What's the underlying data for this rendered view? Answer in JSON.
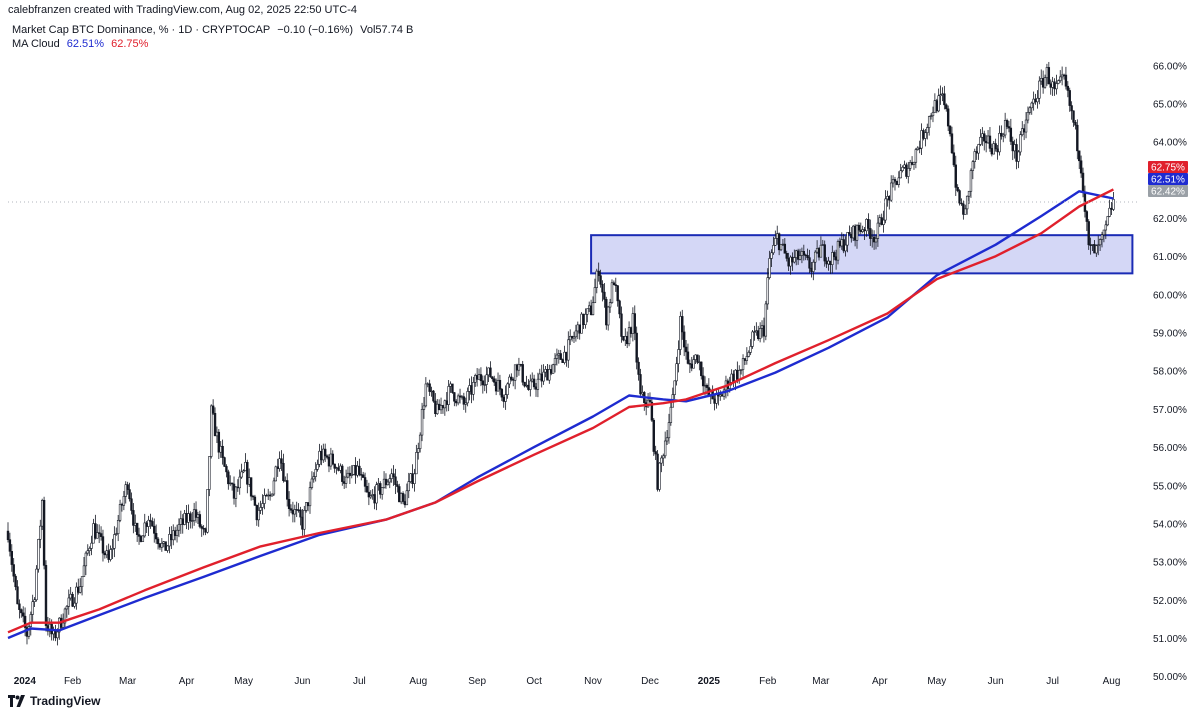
{
  "header": {
    "credit": "calebfranzen created with TradingView.com, Aug 02, 2025 22:50 UTC-4",
    "symbol": "Market Cap BTC Dominance, % · 1D · CRYPTOCAP",
    "change": "−0.10 (−0.16%)",
    "volume": "Vol57.74 B",
    "indicator_name": "MA Cloud",
    "indicator_value_blue": "62.51%",
    "indicator_value_red": "62.75%"
  },
  "footer": {
    "brand": "TradingView",
    "logo_icon": "tradingview-logo-icon"
  },
  "colors": {
    "candle": "#131722",
    "ma_fast": "#1e2bd0",
    "ma_slow": "#e0202c",
    "zone_fill": "#3949d6",
    "zone_stroke": "#1a2bb5",
    "axis_text": "#131722",
    "last_label": "#9aa0a6"
  },
  "chart_data": {
    "type": "candlestick",
    "title": "Market Cap BTC Dominance, %",
    "y_scale": "linear",
    "ylim": [
      49.9,
      66.4
    ],
    "grid": false,
    "y_ticks": [
      "66.00%",
      "65.00%",
      "64.00%",
      "63.00%",
      "62.00%",
      "61.00%",
      "60.00%",
      "59.00%",
      "58.00%",
      "57.00%",
      "56.00%",
      "55.00%",
      "54.00%",
      "53.00%",
      "52.00%",
      "51.00%",
      "50.00%"
    ],
    "y_tick_values": [
      66,
      65,
      64,
      63,
      62,
      61,
      60,
      59,
      58,
      57,
      56,
      55,
      54,
      53,
      52,
      51,
      50
    ],
    "x_ticks": [
      "2024",
      "Feb",
      "Mar",
      "Apr",
      "May",
      "Jun",
      "Jul",
      "Aug",
      "Sep",
      "Oct",
      "Nov",
      "Dec",
      "2025",
      "Feb",
      "Mar",
      "Apr",
      "May",
      "Jun",
      "Jul",
      "Aug"
    ],
    "x_tick_dates": [
      "2024-01-01",
      "2024-02-01",
      "2024-03-01",
      "2024-04-01",
      "2024-05-01",
      "2024-06-01",
      "2024-07-01",
      "2024-08-01",
      "2024-09-01",
      "2024-10-01",
      "2024-11-01",
      "2024-12-01",
      "2025-01-01",
      "2025-02-01",
      "2025-03-01",
      "2025-04-01",
      "2025-05-01",
      "2025-06-01",
      "2025-07-01",
      "2025-08-01"
    ],
    "x_range": [
      "2023-12-29",
      "2025-08-16"
    ],
    "price_path": [
      [
        "2023-12-29",
        53.8
      ],
      [
        "2024-01-03",
        51.8
      ],
      [
        "2024-01-08",
        51.1
      ],
      [
        "2024-01-12",
        52.2
      ],
      [
        "2024-01-16",
        54.6
      ],
      [
        "2024-01-18",
        51.4
      ],
      [
        "2024-01-22",
        51.0
      ],
      [
        "2024-01-28",
        51.7
      ],
      [
        "2024-02-05",
        52.4
      ],
      [
        "2024-02-12",
        53.9
      ],
      [
        "2024-02-20",
        53.0
      ],
      [
        "2024-02-26",
        54.3
      ],
      [
        "2024-03-01",
        55.1
      ],
      [
        "2024-03-06",
        53.5
      ],
      [
        "2024-03-12",
        54.2
      ],
      [
        "2024-03-20",
        53.3
      ],
      [
        "2024-03-28",
        53.9
      ],
      [
        "2024-04-05",
        54.3
      ],
      [
        "2024-04-11",
        53.6
      ],
      [
        "2024-04-14",
        56.9
      ],
      [
        "2024-04-20",
        55.6
      ],
      [
        "2024-04-26",
        54.7
      ],
      [
        "2024-05-02",
        55.4
      ],
      [
        "2024-05-08",
        54.3
      ],
      [
        "2024-05-15",
        54.7
      ],
      [
        "2024-05-20",
        55.9
      ],
      [
        "2024-05-25",
        54.5
      ],
      [
        "2024-06-01",
        54.0
      ],
      [
        "2024-06-10",
        55.8
      ],
      [
        "2024-06-18",
        55.6
      ],
      [
        "2024-06-24",
        55.1
      ],
      [
        "2024-06-30",
        55.4
      ],
      [
        "2024-07-06",
        54.6
      ],
      [
        "2024-07-12",
        54.9
      ],
      [
        "2024-07-18",
        55.3
      ],
      [
        "2024-07-24",
        54.5
      ],
      [
        "2024-07-30",
        55.4
      ],
      [
        "2024-08-05",
        57.6
      ],
      [
        "2024-08-11",
        56.9
      ],
      [
        "2024-08-18",
        57.5
      ],
      [
        "2024-08-25",
        57.1
      ],
      [
        "2024-09-01",
        57.8
      ],
      [
        "2024-09-08",
        57.9
      ],
      [
        "2024-09-15",
        57.4
      ],
      [
        "2024-09-22",
        58.2
      ],
      [
        "2024-09-28",
        57.5
      ],
      [
        "2024-10-05",
        57.8
      ],
      [
        "2024-10-12",
        58.2
      ],
      [
        "2024-10-18",
        58.5
      ],
      [
        "2024-10-25",
        59.2
      ],
      [
        "2024-10-31",
        59.6
      ],
      [
        "2024-11-04",
        60.7
      ],
      [
        "2024-11-08",
        59.4
      ],
      [
        "2024-11-12",
        60.4
      ],
      [
        "2024-11-17",
        58.6
      ],
      [
        "2024-11-22",
        59.3
      ],
      [
        "2024-11-26",
        57.3
      ],
      [
        "2024-12-01",
        57.1
      ],
      [
        "2024-12-05",
        55.1
      ],
      [
        "2024-12-09",
        56.2
      ],
      [
        "2024-12-13",
        57.2
      ],
      [
        "2024-12-17",
        59.3
      ],
      [
        "2024-12-21",
        58.1
      ],
      [
        "2024-12-26",
        58.4
      ],
      [
        "2024-12-31",
        57.4
      ],
      [
        "2025-01-06",
        57.2
      ],
      [
        "2025-01-12",
        57.8
      ],
      [
        "2025-01-18",
        58.0
      ],
      [
        "2025-01-24",
        58.8
      ],
      [
        "2025-01-30",
        59.1
      ],
      [
        "2025-02-02",
        60.9
      ],
      [
        "2025-02-06",
        61.5
      ],
      [
        "2025-02-12",
        60.8
      ],
      [
        "2025-02-18",
        61.0
      ],
      [
        "2025-02-24",
        60.7
      ],
      [
        "2025-03-01",
        61.2
      ],
      [
        "2025-03-06",
        60.9
      ],
      [
        "2025-03-12",
        61.3
      ],
      [
        "2025-03-18",
        61.6
      ],
      [
        "2025-03-24",
        61.8
      ],
      [
        "2025-03-30",
        61.5
      ],
      [
        "2025-04-05",
        62.5
      ],
      [
        "2025-04-11",
        63.1
      ],
      [
        "2025-04-17",
        63.4
      ],
      [
        "2025-04-23",
        64.1
      ],
      [
        "2025-04-29",
        64.9
      ],
      [
        "2025-05-04",
        65.1
      ],
      [
        "2025-05-08",
        64.3
      ],
      [
        "2025-05-12",
        62.5
      ],
      [
        "2025-05-16",
        62.1
      ],
      [
        "2025-05-20",
        63.5
      ],
      [
        "2025-05-26",
        64.1
      ],
      [
        "2025-06-01",
        63.8
      ],
      [
        "2025-06-06",
        64.5
      ],
      [
        "2025-06-12",
        63.6
      ],
      [
        "2025-06-18",
        64.7
      ],
      [
        "2025-06-24",
        65.4
      ],
      [
        "2025-06-28",
        65.8
      ],
      [
        "2025-07-02",
        65.3
      ],
      [
        "2025-07-07",
        65.6
      ],
      [
        "2025-07-12",
        64.5
      ],
      [
        "2025-07-16",
        63.4
      ],
      [
        "2025-07-20",
        61.2
      ],
      [
        "2025-07-24",
        61.1
      ],
      [
        "2025-07-28",
        61.5
      ],
      [
        "2025-08-01",
        62.3
      ],
      [
        "2025-08-02",
        62.42
      ]
    ],
    "series": [
      {
        "name": "MA Cloud",
        "color": "#1e2bd0",
        "last_value": 62.51,
        "points": [
          [
            "2023-12-29",
            51.0
          ],
          [
            "2024-01-10",
            51.25
          ],
          [
            "2024-01-25",
            51.2
          ],
          [
            "2024-02-15",
            51.6
          ],
          [
            "2024-03-10",
            52.05
          ],
          [
            "2024-04-10",
            52.6
          ],
          [
            "2024-05-10",
            53.15
          ],
          [
            "2024-06-10",
            53.7
          ],
          [
            "2024-07-15",
            54.1
          ],
          [
            "2024-08-10",
            54.55
          ],
          [
            "2024-09-01",
            55.2
          ],
          [
            "2024-10-01",
            56.0
          ],
          [
            "2024-11-01",
            56.8
          ],
          [
            "2024-11-20",
            57.35
          ],
          [
            "2024-12-08",
            57.25
          ],
          [
            "2024-12-20",
            57.2
          ],
          [
            "2025-01-10",
            57.45
          ],
          [
            "2025-02-05",
            57.95
          ],
          [
            "2025-03-05",
            58.6
          ],
          [
            "2025-04-05",
            59.4
          ],
          [
            "2025-05-01",
            60.5
          ],
          [
            "2025-06-01",
            61.3
          ],
          [
            "2025-06-25",
            62.05
          ],
          [
            "2025-07-15",
            62.7
          ],
          [
            "2025-08-02",
            62.51
          ]
        ]
      },
      {
        "name": "MA Cloud",
        "color": "#e0202c",
        "last_value": 62.75,
        "points": [
          [
            "2023-12-29",
            51.15
          ],
          [
            "2024-01-10",
            51.4
          ],
          [
            "2024-01-25",
            51.4
          ],
          [
            "2024-02-15",
            51.75
          ],
          [
            "2024-03-10",
            52.25
          ],
          [
            "2024-04-10",
            52.85
          ],
          [
            "2024-05-10",
            53.4
          ],
          [
            "2024-06-10",
            53.75
          ],
          [
            "2024-07-15",
            54.1
          ],
          [
            "2024-08-10",
            54.55
          ],
          [
            "2024-09-01",
            55.1
          ],
          [
            "2024-10-01",
            55.8
          ],
          [
            "2024-11-01",
            56.5
          ],
          [
            "2024-11-20",
            57.05
          ],
          [
            "2024-12-08",
            57.15
          ],
          [
            "2024-12-20",
            57.25
          ],
          [
            "2025-01-10",
            57.6
          ],
          [
            "2025-02-05",
            58.2
          ],
          [
            "2025-03-05",
            58.8
          ],
          [
            "2025-04-05",
            59.5
          ],
          [
            "2025-05-01",
            60.4
          ],
          [
            "2025-06-01",
            61.0
          ],
          [
            "2025-06-25",
            61.6
          ],
          [
            "2025-07-15",
            62.3
          ],
          [
            "2025-08-02",
            62.75
          ]
        ]
      }
    ],
    "zone": {
      "from": "2024-10-31",
      "to": "2025-08-12",
      "low": 60.55,
      "high": 61.55
    },
    "last_price": 62.42,
    "price_labels": [
      {
        "text": "62.75%",
        "value": 62.75,
        "color": "#e0202c"
      },
      {
        "text": "62.51%",
        "value": 62.51,
        "color": "#1e2bd0"
      },
      {
        "text": "62.42%",
        "value": 62.42,
        "color": "#9aa0a6"
      }
    ]
  }
}
